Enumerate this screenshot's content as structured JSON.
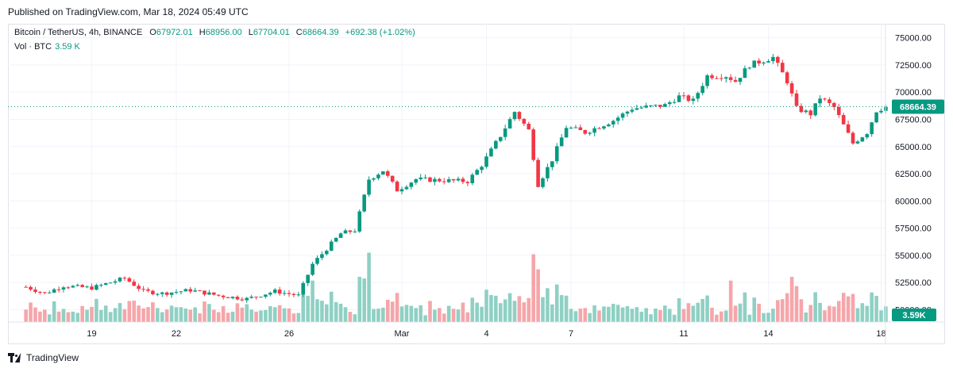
{
  "header": {
    "published": "Published on TradingView.com, Mar 18, 2024 05:49 UTC"
  },
  "legend": {
    "symbol": "Bitcoin / TetherUS, 4h, BINANCE",
    "o_label": "O",
    "o_value": "67972.01",
    "h_label": "H",
    "h_value": "68956.00",
    "l_label": "L",
    "l_value": "67704.01",
    "c_label": "C",
    "c_value": "68664.39",
    "change": "+692.38 (+1.02%)",
    "vol_label": "Vol · BTC",
    "vol_value": "3.59 K"
  },
  "footer": {
    "brand": "TradingView"
  },
  "colors": {
    "up": "#089981",
    "down": "#f23645",
    "up_vol": "#8fd0c4",
    "down_vol": "#f5a6aa",
    "grid": "#f0f3fa",
    "axis_text": "#131722"
  },
  "chart_data": {
    "type": "candlestick",
    "interval": "4h",
    "y_ticks": [
      75000,
      72500,
      70000,
      67500,
      65000,
      62500,
      60000,
      57500,
      55000,
      52500,
      50000
    ],
    "y_tick_labels": [
      "75000.00",
      "72500.00",
      "70000.00",
      "67500.00",
      "65000.00",
      "62500.00",
      "60000.00",
      "57500.00",
      "55000.00",
      "52500.00",
      "50000.00"
    ],
    "ylim": [
      49600,
      75700
    ],
    "x_tick_labels": [
      {
        "label": "19",
        "date": "2024-02-19"
      },
      {
        "label": "22",
        "date": "2024-02-22"
      },
      {
        "label": "26",
        "date": "2024-02-26"
      },
      {
        "label": "Mar",
        "date": "2024-03-01"
      },
      {
        "label": "4",
        "date": "2024-03-04"
      },
      {
        "label": "7",
        "date": "2024-03-07"
      },
      {
        "label": "11",
        "date": "2024-03-11"
      },
      {
        "label": "14",
        "date": "2024-03-14"
      },
      {
        "label": "18",
        "date": "2024-03-18"
      }
    ],
    "x_start": "2024-02-16",
    "last_price": 68664.39,
    "last_price_label": "68664.39",
    "last_volume_label": "3.59K",
    "close_anchors": [
      {
        "date": "2024-02-16T16:00",
        "close": 52100
      },
      {
        "date": "2024-02-17T08:00",
        "close": 51500
      },
      {
        "date": "2024-02-18T00:00",
        "close": 52200
      },
      {
        "date": "2024-02-19T00:00",
        "close": 52000
      },
      {
        "date": "2024-02-20T04:00",
        "close": 52900
      },
      {
        "date": "2024-02-20T20:00",
        "close": 51700
      },
      {
        "date": "2024-02-21T12:00",
        "close": 51500
      },
      {
        "date": "2024-02-22T12:00",
        "close": 51800
      },
      {
        "date": "2024-02-23T12:00",
        "close": 51300
      },
      {
        "date": "2024-02-24T12:00",
        "close": 51000
      },
      {
        "date": "2024-02-25T12:00",
        "close": 51700
      },
      {
        "date": "2024-02-26T08:00",
        "close": 51300
      },
      {
        "date": "2024-02-26T20:00",
        "close": 54200
      },
      {
        "date": "2024-02-27T20:00",
        "close": 57000
      },
      {
        "date": "2024-02-28T08:00",
        "close": 57300
      },
      {
        "date": "2024-02-28T20:00",
        "close": 62000
      },
      {
        "date": "2024-02-29T08:00",
        "close": 62800
      },
      {
        "date": "2024-02-29T20:00",
        "close": 61000
      },
      {
        "date": "2024-03-01T12:00",
        "close": 62000
      },
      {
        "date": "2024-03-02T08:00",
        "close": 61900
      },
      {
        "date": "2024-03-03T08:00",
        "close": 61800
      },
      {
        "date": "2024-03-03T20:00",
        "close": 63300
      },
      {
        "date": "2024-03-04T12:00",
        "close": 66000
      },
      {
        "date": "2024-03-05T00:00",
        "close": 68200
      },
      {
        "date": "2024-03-05T12:00",
        "close": 66500
      },
      {
        "date": "2024-03-05T20:00",
        "close": 61500
      },
      {
        "date": "2024-03-06T08:00",
        "close": 63800
      },
      {
        "date": "2024-03-06T20:00",
        "close": 66800
      },
      {
        "date": "2024-03-07T12:00",
        "close": 66300
      },
      {
        "date": "2024-03-08T12:00",
        "close": 67400
      },
      {
        "date": "2024-03-09T04:00",
        "close": 68500
      },
      {
        "date": "2024-03-10T08:00",
        "close": 68800
      },
      {
        "date": "2024-03-10T20:00",
        "close": 69600
      },
      {
        "date": "2024-03-11T08:00",
        "close": 69200
      },
      {
        "date": "2024-03-11T20:00",
        "close": 71500
      },
      {
        "date": "2024-03-12T12:00",
        "close": 71500
      },
      {
        "date": "2024-03-12T20:00",
        "close": 71000
      },
      {
        "date": "2024-03-13T08:00",
        "close": 72500
      },
      {
        "date": "2024-03-14T04:00",
        "close": 73200
      },
      {
        "date": "2024-03-14T16:00",
        "close": 71000
      },
      {
        "date": "2024-03-15T00:00",
        "close": 68500
      },
      {
        "date": "2024-03-15T12:00",
        "close": 68000
      },
      {
        "date": "2024-03-15T20:00",
        "close": 69500
      },
      {
        "date": "2024-03-16T08:00",
        "close": 68600
      },
      {
        "date": "2024-03-17T00:00",
        "close": 65300
      },
      {
        "date": "2024-03-17T12:00",
        "close": 66300
      },
      {
        "date": "2024-03-17T20:00",
        "close": 68300
      },
      {
        "date": "2024-03-18T04:00",
        "close": 68664.39
      }
    ],
    "volume_highlights": [
      {
        "date": "2024-02-28T20:00",
        "volume_rel": 0.92,
        "direction": "down"
      },
      {
        "date": "2024-03-05T16:00",
        "volume_rel": 0.9,
        "direction": "down"
      },
      {
        "date": "2024-03-05T20:00",
        "volume_rel": 0.7,
        "direction": "down"
      },
      {
        "date": "2024-02-26T20:00",
        "volume_rel": 0.55,
        "direction": "up"
      },
      {
        "date": "2024-03-12T16:00",
        "volume_rel": 0.55,
        "direction": "down"
      },
      {
        "date": "2024-03-14T20:00",
        "volume_rel": 0.6,
        "direction": "down"
      }
    ]
  }
}
